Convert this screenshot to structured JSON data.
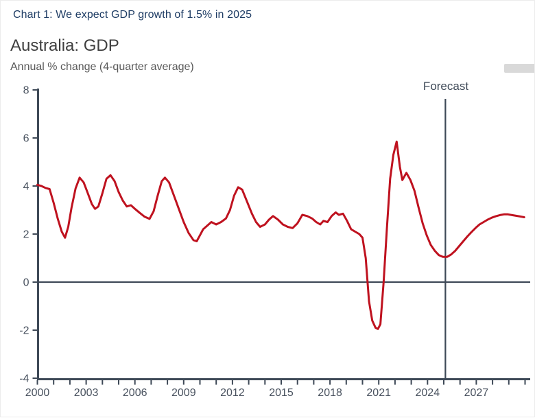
{
  "header": {
    "title": "Chart 1: We expect GDP growth of 1.5% in 2025"
  },
  "colors": {
    "series_red": "#bf121f",
    "axis_slate": "#3e4957",
    "caption_navy": "#1e3c64",
    "heading_gray": "#3f3f3f",
    "subtitle_gray": "#595959",
    "tick_label_gray": "#49525f"
  },
  "chart_data": {
    "type": "line",
    "title": "Australia: GDP",
    "subtitle": "Annual % change (4-quarter average)",
    "ylim": [
      -4,
      8
    ],
    "xlim": [
      2000,
      2030.3
    ],
    "y_ticks": [
      8,
      6,
      4,
      2,
      0,
      -2,
      -4
    ],
    "x_tick_labels": [
      2000,
      2003,
      2006,
      2009,
      2012,
      2015,
      2018,
      2021,
      2024,
      2027
    ],
    "x_minor_tick_range": [
      2000,
      2030
    ],
    "x_minor_tick_step": 1,
    "grid": false,
    "legend": "none",
    "zero_line": true,
    "forecast_line_x": 2025.1,
    "forecast_label": "Forecast",
    "series": [
      {
        "name": "Australia GDP annual % change (4-quarter average)",
        "color": "#bf121f",
        "points": [
          [
            2000.0,
            4.05
          ],
          [
            2000.25,
            4.0
          ],
          [
            2000.5,
            3.92
          ],
          [
            2000.75,
            3.87
          ],
          [
            2001.0,
            3.3
          ],
          [
            2001.25,
            2.65
          ],
          [
            2001.5,
            2.1
          ],
          [
            2001.7,
            1.85
          ],
          [
            2001.9,
            2.3
          ],
          [
            2002.1,
            3.1
          ],
          [
            2002.35,
            3.9
          ],
          [
            2002.6,
            4.35
          ],
          [
            2002.85,
            4.15
          ],
          [
            2003.1,
            3.7
          ],
          [
            2003.35,
            3.25
          ],
          [
            2003.55,
            3.05
          ],
          [
            2003.75,
            3.15
          ],
          [
            2004.0,
            3.7
          ],
          [
            2004.25,
            4.3
          ],
          [
            2004.5,
            4.45
          ],
          [
            2004.75,
            4.2
          ],
          [
            2005.0,
            3.75
          ],
          [
            2005.25,
            3.4
          ],
          [
            2005.5,
            3.15
          ],
          [
            2005.75,
            3.2
          ],
          [
            2006.0,
            3.05
          ],
          [
            2006.3,
            2.88
          ],
          [
            2006.6,
            2.72
          ],
          [
            2006.9,
            2.63
          ],
          [
            2007.15,
            2.95
          ],
          [
            2007.4,
            3.6
          ],
          [
            2007.65,
            4.2
          ],
          [
            2007.85,
            4.35
          ],
          [
            2008.1,
            4.15
          ],
          [
            2008.4,
            3.6
          ],
          [
            2008.7,
            3.05
          ],
          [
            2009.0,
            2.5
          ],
          [
            2009.3,
            2.05
          ],
          [
            2009.6,
            1.75
          ],
          [
            2009.8,
            1.7
          ],
          [
            2010.0,
            1.95
          ],
          [
            2010.2,
            2.2
          ],
          [
            2010.45,
            2.35
          ],
          [
            2010.7,
            2.5
          ],
          [
            2011.0,
            2.4
          ],
          [
            2011.3,
            2.5
          ],
          [
            2011.6,
            2.65
          ],
          [
            2011.85,
            3.0
          ],
          [
            2012.1,
            3.6
          ],
          [
            2012.35,
            3.95
          ],
          [
            2012.6,
            3.85
          ],
          [
            2012.9,
            3.35
          ],
          [
            2013.2,
            2.85
          ],
          [
            2013.45,
            2.5
          ],
          [
            2013.7,
            2.3
          ],
          [
            2014.0,
            2.4
          ],
          [
            2014.25,
            2.6
          ],
          [
            2014.5,
            2.75
          ],
          [
            2014.8,
            2.6
          ],
          [
            2015.1,
            2.4
          ],
          [
            2015.4,
            2.3
          ],
          [
            2015.7,
            2.25
          ],
          [
            2016.0,
            2.45
          ],
          [
            2016.3,
            2.8
          ],
          [
            2016.6,
            2.75
          ],
          [
            2016.9,
            2.65
          ],
          [
            2017.15,
            2.5
          ],
          [
            2017.4,
            2.4
          ],
          [
            2017.6,
            2.55
          ],
          [
            2017.85,
            2.5
          ],
          [
            2018.1,
            2.75
          ],
          [
            2018.35,
            2.9
          ],
          [
            2018.55,
            2.8
          ],
          [
            2018.8,
            2.85
          ],
          [
            2019.05,
            2.55
          ],
          [
            2019.3,
            2.2
          ],
          [
            2019.55,
            2.1
          ],
          [
            2019.8,
            2.0
          ],
          [
            2020.0,
            1.85
          ],
          [
            2020.2,
            1.0
          ],
          [
            2020.4,
            -0.8
          ],
          [
            2020.6,
            -1.6
          ],
          [
            2020.8,
            -1.9
          ],
          [
            2020.95,
            -1.95
          ],
          [
            2021.1,
            -1.75
          ],
          [
            2021.3,
            0.0
          ],
          [
            2021.5,
            2.2
          ],
          [
            2021.7,
            4.3
          ],
          [
            2021.9,
            5.3
          ],
          [
            2022.1,
            5.85
          ],
          [
            2022.3,
            4.8
          ],
          [
            2022.45,
            4.25
          ],
          [
            2022.7,
            4.55
          ],
          [
            2022.95,
            4.25
          ],
          [
            2023.2,
            3.8
          ],
          [
            2023.45,
            3.1
          ],
          [
            2023.7,
            2.45
          ],
          [
            2023.95,
            1.95
          ],
          [
            2024.2,
            1.55
          ],
          [
            2024.45,
            1.3
          ],
          [
            2024.7,
            1.12
          ],
          [
            2024.95,
            1.05
          ],
          [
            2025.2,
            1.05
          ],
          [
            2025.45,
            1.15
          ],
          [
            2025.7,
            1.3
          ],
          [
            2025.95,
            1.5
          ],
          [
            2026.2,
            1.7
          ],
          [
            2026.45,
            1.9
          ],
          [
            2026.7,
            2.08
          ],
          [
            2026.95,
            2.25
          ],
          [
            2027.2,
            2.4
          ],
          [
            2027.45,
            2.5
          ],
          [
            2027.7,
            2.6
          ],
          [
            2027.95,
            2.68
          ],
          [
            2028.2,
            2.74
          ],
          [
            2028.45,
            2.79
          ],
          [
            2028.7,
            2.82
          ],
          [
            2028.95,
            2.82
          ],
          [
            2029.2,
            2.79
          ],
          [
            2029.45,
            2.76
          ],
          [
            2029.7,
            2.73
          ],
          [
            2029.95,
            2.7
          ]
        ]
      }
    ]
  }
}
